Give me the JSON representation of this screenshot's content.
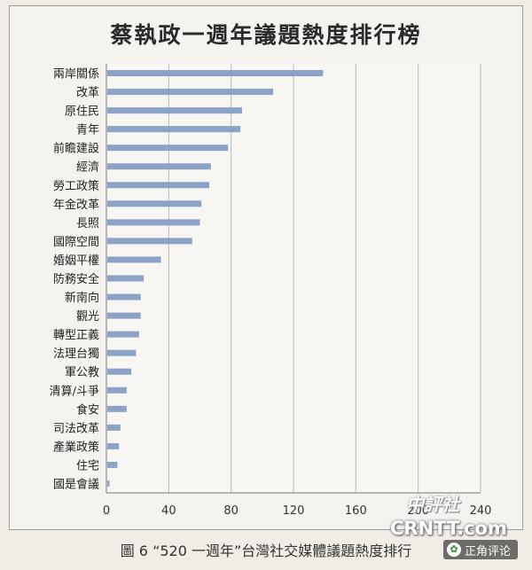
{
  "chart_data": {
    "type": "bar",
    "orientation": "horizontal",
    "title": "蔡執政一週年議題熱度排行榜",
    "categories": [
      "兩岸關係",
      "改革",
      "原住民",
      "青年",
      "前瞻建設",
      "經濟",
      "勞工政策",
      "年金改革",
      "長照",
      "國際空間",
      "婚姻平權",
      "防務安全",
      "新南向",
      "觀光",
      "轉型正義",
      "法理台獨",
      "軍公教",
      "清算/斗爭",
      "食安",
      "司法改革",
      "產業政策",
      "住宅",
      "國是會議"
    ],
    "values": [
      139,
      107,
      87,
      86,
      78,
      67,
      66,
      61,
      60,
      55,
      35,
      24,
      22,
      22,
      21,
      19,
      16,
      13,
      13,
      9,
      8,
      7,
      2
    ],
    "xticks": [
      "0",
      "40",
      "80",
      "120",
      "160",
      "200",
      "240"
    ],
    "xlim": [
      0,
      240
    ],
    "grid": "vertical",
    "legend": "none",
    "bar_color": "#8da2c7"
  },
  "caption": "圖 6 “520 一週年”台灣社交媒體議題熱度排行",
  "watermark": {
    "site_cn": "中評社",
    "site_en": "CRNTT.com",
    "badge_text": "正角评论",
    "badge_icon": "wechat-icon"
  }
}
